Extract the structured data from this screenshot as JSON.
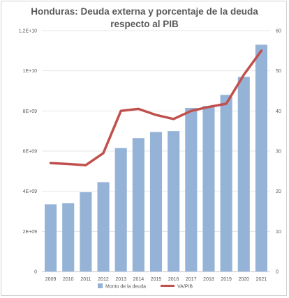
{
  "chart_data": {
    "type": "bar+line",
    "title": "Honduras: Deuda externa y porcentaje de la deuda respecto al PIB",
    "categories": [
      "2009",
      "2010",
      "2011",
      "2012",
      "2013",
      "2014",
      "2015",
      "2016",
      "2017",
      "2018",
      "2019",
      "2020",
      "2021"
    ],
    "series": [
      {
        "name": "Monto de la deuda",
        "type": "bar",
        "axis": "left",
        "color": "#95b3d7",
        "values": [
          3350000000.0,
          3400000000.0,
          3950000000.0,
          4450000000.0,
          6150000000.0,
          6650000000.0,
          6950000000.0,
          7000000000.0,
          8150000000.0,
          8250000000.0,
          8800000000.0,
          9700000000.0,
          11300000000.0
        ]
      },
      {
        "name": "VA/PIB",
        "type": "line",
        "axis": "right",
        "color": "#c0504d",
        "values": [
          27.0,
          26.8,
          26.5,
          29.5,
          40.0,
          40.5,
          39.0,
          38.0,
          40.0,
          41.0,
          41.8,
          49.0,
          55.0
        ]
      }
    ],
    "left_axis": {
      "ylim": [
        0,
        12000000000
      ],
      "ticks": [
        0,
        2000000000,
        4000000000,
        6000000000,
        8000000000,
        10000000000,
        12000000000
      ],
      "tick_labels": [
        "0",
        "2E+09",
        "4E+09",
        "6E+09",
        "8E+09",
        "1E+10",
        "1,2E+10"
      ]
    },
    "right_axis": {
      "ylim": [
        0,
        60
      ],
      "ticks": [
        0,
        10,
        20,
        30,
        40,
        50,
        60
      ],
      "tick_labels": [
        "0",
        "10",
        "20",
        "30",
        "40",
        "50",
        "60"
      ]
    },
    "grid": true,
    "legend_position": "bottom"
  }
}
